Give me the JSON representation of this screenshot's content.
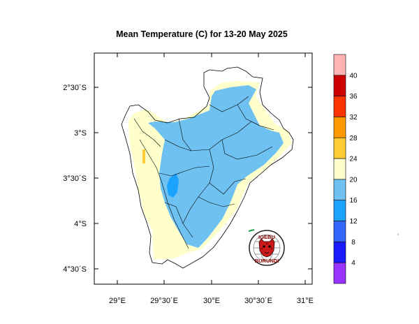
{
  "title": "Mean Temperature (C) for 13-20 May 2025",
  "map": {
    "x_ticks": [
      "29°E",
      "29°30´E",
      "30°E",
      "30°30´E",
      "31°E"
    ],
    "y_ticks": [
      "2°30´S",
      "3°S",
      "3°30´S",
      "4°S",
      "4°30´S"
    ],
    "lon_range": [
      28.8,
      31.1
    ],
    "lat_range": [
      -4.7,
      -2.22
    ]
  },
  "colorbar": {
    "labels": [
      "4",
      "8",
      "12",
      "16",
      "20",
      "24",
      "28",
      "32",
      "36",
      "40"
    ],
    "colors": [
      "#9933ff",
      "#1a1aff",
      "#3366ff",
      "#1aa3ff",
      "#6ec1f0",
      "#ffffcc",
      "#ffcc33",
      "#ff9900",
      "#ff3300",
      "#cc0000",
      "#ffb3b3"
    ]
  },
  "logo": {
    "text_top": "IGEBU",
    "text_bottom": "BURUNDI",
    "icon": "leopard-head-icon",
    "accent": "#cc0000"
  }
}
